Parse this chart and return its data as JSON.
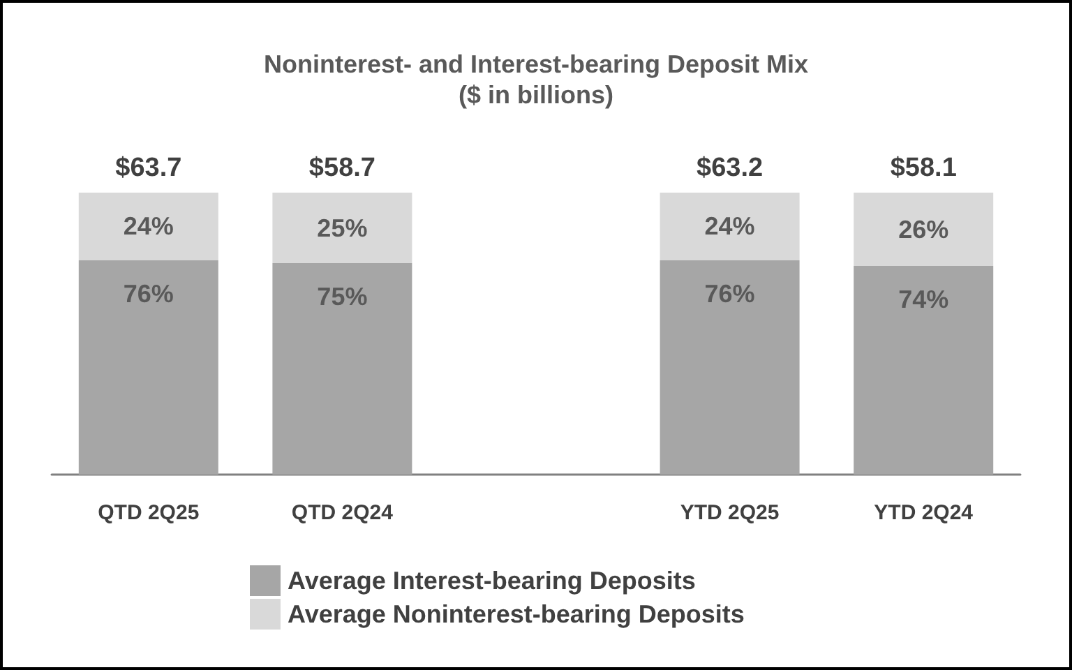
{
  "chart_data": {
    "type": "bar",
    "title": "Noninterest- and Interest-bearing Deposit Mix",
    "subtitle": "($ in billions)",
    "categories": [
      "QTD 2Q25",
      "QTD 2Q24",
      null,
      "YTD 2Q25",
      "YTD 2Q24"
    ],
    "stacked": true,
    "series": [
      {
        "name": "Average Interest-bearing Deposits",
        "color": "#a6a6a6",
        "values": [
          76,
          75,
          null,
          76,
          74
        ],
        "value_labels": [
          "76%",
          "75%",
          null,
          "76%",
          "74%"
        ]
      },
      {
        "name": "Average Noninterest-bearing Deposits",
        "color": "#d9d9d9",
        "values": [
          24,
          25,
          null,
          24,
          26
        ],
        "value_labels": [
          "24%",
          "25%",
          null,
          "24%",
          "26%"
        ]
      }
    ],
    "annotations": [
      {
        "text": "$63.7",
        "x": "QTD 2Q25",
        "y": 100
      },
      {
        "text": "$58.7",
        "x": "QTD 2Q24",
        "y": 100
      },
      {
        "text": "$63.2",
        "x": "YTD 2Q25",
        "y": 100
      },
      {
        "text": "$58.1",
        "x": "YTD 2Q24",
        "y": 100
      }
    ],
    "legend": "bottom"
  }
}
